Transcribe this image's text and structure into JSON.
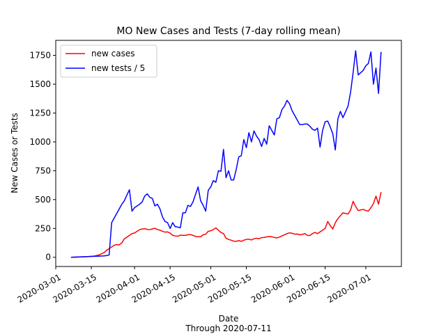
{
  "chart_data": {
    "type": "line",
    "title": "MO New Cases and Tests (7-day rolling mean)",
    "xlabel": "Date",
    "xlabel_sub": "Through 2020-07-11",
    "ylabel": "New Cases or Tests",
    "xlim": [
      "2020-03-01",
      "2020-07-15"
    ],
    "ylim": [
      -80,
      1880
    ],
    "x_ticks": [
      "2020-03-01",
      "2020-03-15",
      "2020-04-01",
      "2020-04-15",
      "2020-05-01",
      "2020-05-15",
      "2020-06-01",
      "2020-06-15",
      "2020-07-01"
    ],
    "y_ticks": [
      0,
      250,
      500,
      750,
      1000,
      1250,
      1500,
      1750
    ],
    "legend_position": "upper-left",
    "grid": false,
    "series": [
      {
        "name": "new cases",
        "color": "#ff0000",
        "points": [
          [
            "2020-03-07",
            0
          ],
          [
            "2020-03-10",
            2
          ],
          [
            "2020-03-13",
            5
          ],
          [
            "2020-03-16",
            10
          ],
          [
            "2020-03-18",
            20
          ],
          [
            "2020-03-20",
            40
          ],
          [
            "2020-03-21",
            60
          ],
          [
            "2020-03-23",
            90
          ],
          [
            "2020-03-24",
            105
          ],
          [
            "2020-03-25",
            110
          ],
          [
            "2020-03-26",
            108
          ],
          [
            "2020-03-27",
            125
          ],
          [
            "2020-03-28",
            160
          ],
          [
            "2020-03-29",
            175
          ],
          [
            "2020-03-30",
            190
          ],
          [
            "2020-03-31",
            205
          ],
          [
            "2020-04-01",
            210
          ],
          [
            "2020-04-02",
            225
          ],
          [
            "2020-04-03",
            240
          ],
          [
            "2020-04-04",
            245
          ],
          [
            "2020-04-05",
            248
          ],
          [
            "2020-04-06",
            242
          ],
          [
            "2020-04-07",
            240
          ],
          [
            "2020-04-08",
            245
          ],
          [
            "2020-04-09",
            252
          ],
          [
            "2020-04-10",
            240
          ],
          [
            "2020-04-11",
            235
          ],
          [
            "2020-04-12",
            225
          ],
          [
            "2020-04-13",
            218
          ],
          [
            "2020-04-14",
            220
          ],
          [
            "2020-04-15",
            210
          ],
          [
            "2020-04-16",
            190
          ],
          [
            "2020-04-17",
            185
          ],
          [
            "2020-04-18",
            182
          ],
          [
            "2020-04-19",
            192
          ],
          [
            "2020-04-20",
            190
          ],
          [
            "2020-04-21",
            190
          ],
          [
            "2020-04-22",
            195
          ],
          [
            "2020-04-23",
            197
          ],
          [
            "2020-04-24",
            190
          ],
          [
            "2020-04-25",
            180
          ],
          [
            "2020-04-26",
            178
          ],
          [
            "2020-04-27",
            178
          ],
          [
            "2020-04-28",
            195
          ],
          [
            "2020-04-29",
            200
          ],
          [
            "2020-04-30",
            225
          ],
          [
            "2020-05-01",
            230
          ],
          [
            "2020-05-02",
            240
          ],
          [
            "2020-05-03",
            255
          ],
          [
            "2020-05-04",
            235
          ],
          [
            "2020-05-05",
            215
          ],
          [
            "2020-05-06",
            205
          ],
          [
            "2020-05-07",
            165
          ],
          [
            "2020-05-08",
            155
          ],
          [
            "2020-05-09",
            148
          ],
          [
            "2020-05-10",
            140
          ],
          [
            "2020-05-11",
            138
          ],
          [
            "2020-05-12",
            145
          ],
          [
            "2020-05-13",
            138
          ],
          [
            "2020-05-14",
            148
          ],
          [
            "2020-05-15",
            155
          ],
          [
            "2020-05-16",
            157
          ],
          [
            "2020-05-17",
            150
          ],
          [
            "2020-05-18",
            160
          ],
          [
            "2020-05-19",
            165
          ],
          [
            "2020-05-20",
            162
          ],
          [
            "2020-05-21",
            170
          ],
          [
            "2020-05-22",
            172
          ],
          [
            "2020-05-23",
            177
          ],
          [
            "2020-05-24",
            180
          ],
          [
            "2020-05-25",
            178
          ],
          [
            "2020-05-26",
            172
          ],
          [
            "2020-05-27",
            168
          ],
          [
            "2020-05-28",
            175
          ],
          [
            "2020-05-29",
            185
          ],
          [
            "2020-05-30",
            195
          ],
          [
            "2020-05-31",
            205
          ],
          [
            "2020-06-01",
            212
          ],
          [
            "2020-06-02",
            208
          ],
          [
            "2020-06-03",
            200
          ],
          [
            "2020-06-04",
            202
          ],
          [
            "2020-06-05",
            195
          ],
          [
            "2020-06-06",
            198
          ],
          [
            "2020-06-07",
            205
          ],
          [
            "2020-06-08",
            190
          ],
          [
            "2020-06-09",
            188
          ],
          [
            "2020-06-10",
            205
          ],
          [
            "2020-06-11",
            215
          ],
          [
            "2020-06-12",
            205
          ],
          [
            "2020-06-13",
            220
          ],
          [
            "2020-06-14",
            235
          ],
          [
            "2020-06-15",
            250
          ],
          [
            "2020-06-16",
            310
          ],
          [
            "2020-06-17",
            275
          ],
          [
            "2020-06-18",
            245
          ],
          [
            "2020-06-19",
            300
          ],
          [
            "2020-06-20",
            335
          ],
          [
            "2020-06-21",
            360
          ],
          [
            "2020-06-22",
            385
          ],
          [
            "2020-06-23",
            380
          ],
          [
            "2020-06-24",
            375
          ],
          [
            "2020-06-25",
            410
          ],
          [
            "2020-06-26",
            485
          ],
          [
            "2020-06-27",
            440
          ],
          [
            "2020-06-28",
            405
          ],
          [
            "2020-06-29",
            410
          ],
          [
            "2020-06-30",
            415
          ],
          [
            "2020-07-01",
            405
          ],
          [
            "2020-07-02",
            400
          ],
          [
            "2020-07-03",
            430
          ],
          [
            "2020-07-04",
            465
          ],
          [
            "2020-07-05",
            530
          ],
          [
            "2020-07-06",
            460
          ],
          [
            "2020-07-07",
            565
          ]
        ]
      },
      {
        "name": "new tests / 5",
        "color": "#0000ff",
        "points": [
          [
            "2020-03-07",
            0
          ],
          [
            "2020-03-10",
            3
          ],
          [
            "2020-03-13",
            5
          ],
          [
            "2020-03-16",
            8
          ],
          [
            "2020-03-18",
            10
          ],
          [
            "2020-03-20",
            12
          ],
          [
            "2020-03-21",
            15
          ],
          [
            "2020-03-22",
            20
          ],
          [
            "2020-03-23",
            300
          ],
          [
            "2020-03-24",
            340
          ],
          [
            "2020-03-25",
            380
          ],
          [
            "2020-03-26",
            420
          ],
          [
            "2020-03-27",
            460
          ],
          [
            "2020-03-28",
            490
          ],
          [
            "2020-03-29",
            540
          ],
          [
            "2020-03-30",
            585
          ],
          [
            "2020-03-31",
            400
          ],
          [
            "2020-04-01",
            430
          ],
          [
            "2020-04-02",
            445
          ],
          [
            "2020-04-03",
            460
          ],
          [
            "2020-04-04",
            480
          ],
          [
            "2020-04-05",
            530
          ],
          [
            "2020-04-06",
            550
          ],
          [
            "2020-04-07",
            520
          ],
          [
            "2020-04-08",
            510
          ],
          [
            "2020-04-09",
            445
          ],
          [
            "2020-04-10",
            460
          ],
          [
            "2020-04-11",
            420
          ],
          [
            "2020-04-12",
            350
          ],
          [
            "2020-04-13",
            310
          ],
          [
            "2020-04-14",
            300
          ],
          [
            "2020-04-15",
            250
          ],
          [
            "2020-04-16",
            300
          ],
          [
            "2020-04-17",
            265
          ],
          [
            "2020-04-18",
            262
          ],
          [
            "2020-04-19",
            255
          ],
          [
            "2020-04-20",
            385
          ],
          [
            "2020-04-21",
            385
          ],
          [
            "2020-04-22",
            450
          ],
          [
            "2020-04-23",
            440
          ],
          [
            "2020-04-24",
            480
          ],
          [
            "2020-04-25",
            545
          ],
          [
            "2020-04-26",
            610
          ],
          [
            "2020-04-27",
            490
          ],
          [
            "2020-04-28",
            450
          ],
          [
            "2020-04-29",
            400
          ],
          [
            "2020-04-30",
            580
          ],
          [
            "2020-05-01",
            610
          ],
          [
            "2020-05-02",
            665
          ],
          [
            "2020-05-03",
            650
          ],
          [
            "2020-05-04",
            750
          ],
          [
            "2020-05-05",
            745
          ],
          [
            "2020-05-06",
            935
          ],
          [
            "2020-05-07",
            690
          ],
          [
            "2020-05-08",
            750
          ],
          [
            "2020-05-09",
            670
          ],
          [
            "2020-05-10",
            670
          ],
          [
            "2020-05-11",
            760
          ],
          [
            "2020-05-12",
            870
          ],
          [
            "2020-05-13",
            880
          ],
          [
            "2020-05-14",
            1020
          ],
          [
            "2020-05-15",
            950
          ],
          [
            "2020-05-16",
            1080
          ],
          [
            "2020-05-17",
            1000
          ],
          [
            "2020-05-18",
            1095
          ],
          [
            "2020-05-19",
            1050
          ],
          [
            "2020-05-20",
            1020
          ],
          [
            "2020-05-21",
            960
          ],
          [
            "2020-05-22",
            1030
          ],
          [
            "2020-05-23",
            980
          ],
          [
            "2020-05-24",
            1140
          ],
          [
            "2020-05-25",
            1100
          ],
          [
            "2020-05-26",
            1060
          ],
          [
            "2020-05-27",
            1200
          ],
          [
            "2020-05-28",
            1210
          ],
          [
            "2020-05-29",
            1280
          ],
          [
            "2020-05-30",
            1310
          ],
          [
            "2020-05-31",
            1360
          ],
          [
            "2020-06-01",
            1330
          ],
          [
            "2020-06-02",
            1270
          ],
          [
            "2020-06-03",
            1230
          ],
          [
            "2020-06-04",
            1190
          ],
          [
            "2020-06-05",
            1150
          ],
          [
            "2020-06-06",
            1150
          ],
          [
            "2020-06-07",
            1155
          ],
          [
            "2020-06-08",
            1155
          ],
          [
            "2020-06-09",
            1135
          ],
          [
            "2020-06-10",
            1110
          ],
          [
            "2020-06-11",
            1100
          ],
          [
            "2020-06-12",
            1120
          ],
          [
            "2020-06-13",
            955
          ],
          [
            "2020-06-14",
            1100
          ],
          [
            "2020-06-15",
            1175
          ],
          [
            "2020-06-16",
            1180
          ],
          [
            "2020-06-17",
            1130
          ],
          [
            "2020-06-18",
            1070
          ],
          [
            "2020-06-19",
            930
          ],
          [
            "2020-06-20",
            1200
          ],
          [
            "2020-06-21",
            1265
          ],
          [
            "2020-06-22",
            1210
          ],
          [
            "2020-06-23",
            1260
          ],
          [
            "2020-06-24",
            1310
          ],
          [
            "2020-06-25",
            1430
          ],
          [
            "2020-06-26",
            1600
          ],
          [
            "2020-06-27",
            1790
          ],
          [
            "2020-06-28",
            1580
          ],
          [
            "2020-06-29",
            1600
          ],
          [
            "2020-06-30",
            1620
          ],
          [
            "2020-07-01",
            1660
          ],
          [
            "2020-07-02",
            1680
          ],
          [
            "2020-07-03",
            1780
          ],
          [
            "2020-07-04",
            1500
          ],
          [
            "2020-07-05",
            1640
          ],
          [
            "2020-07-06",
            1420
          ],
          [
            "2020-07-07",
            1780
          ]
        ]
      }
    ]
  }
}
